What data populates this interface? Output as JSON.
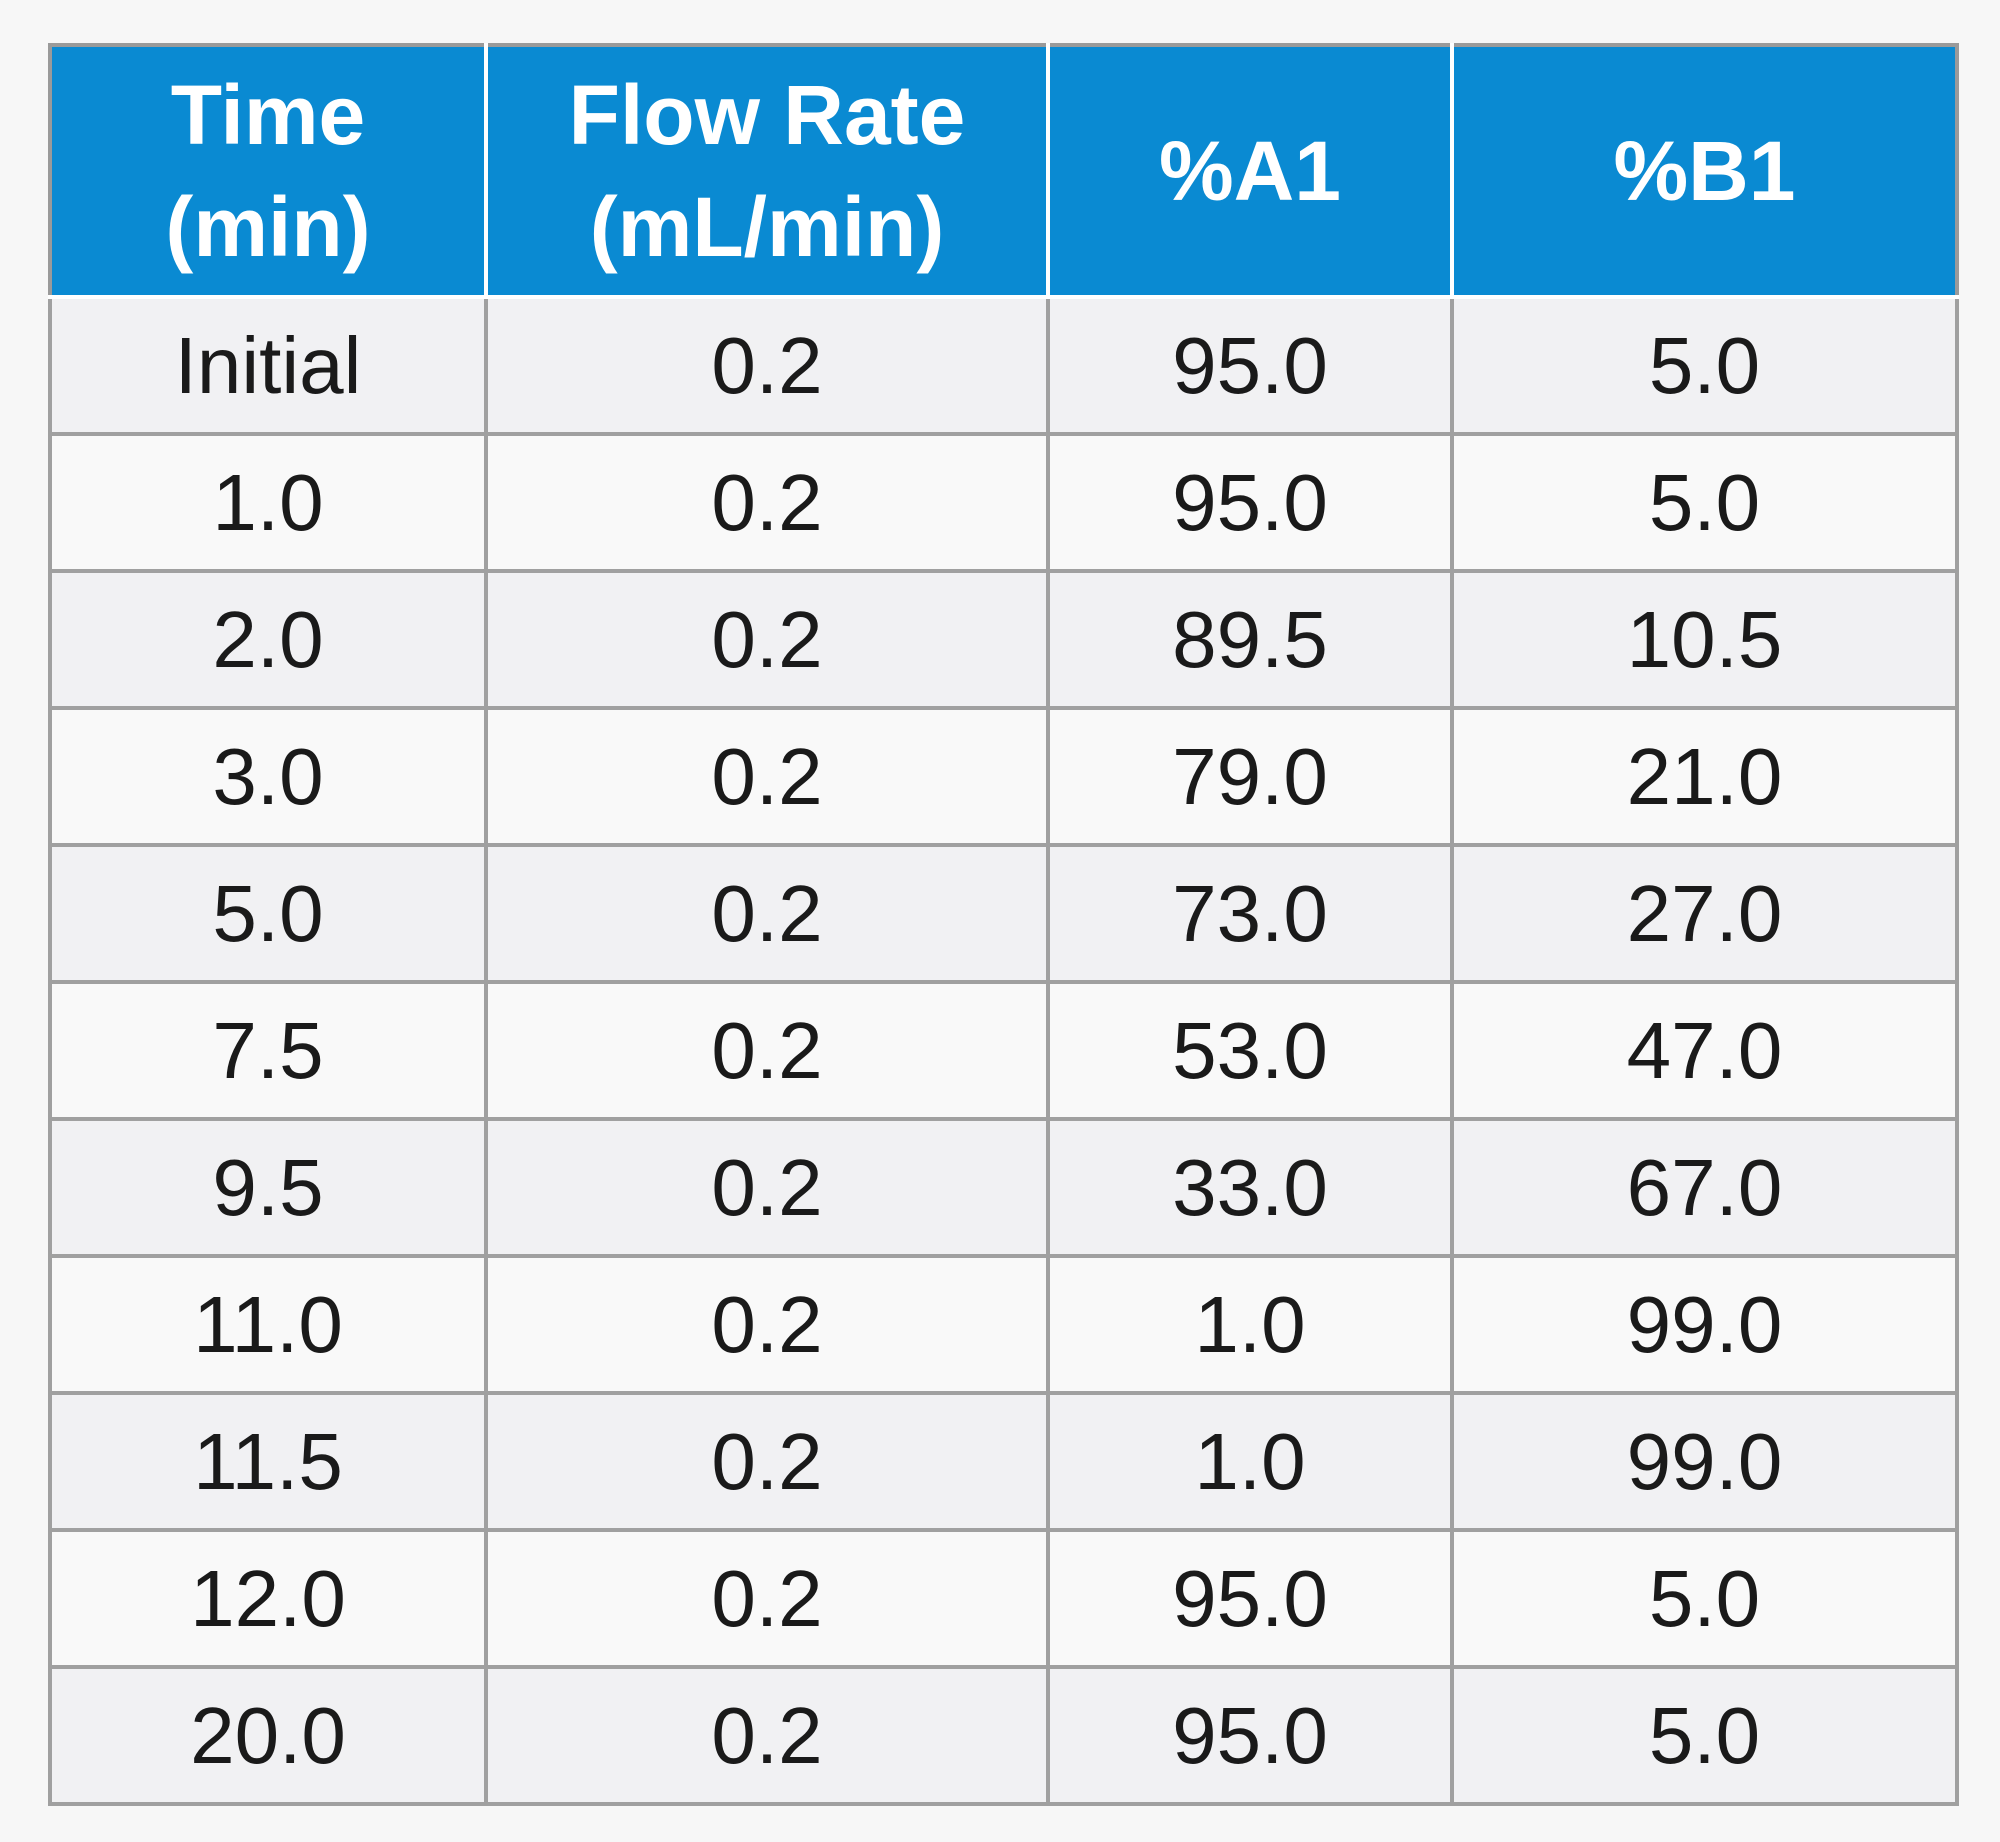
{
  "table": {
    "headers": [
      {
        "line1": "Time",
        "line2": "(min)"
      },
      {
        "line1": "Flow Rate",
        "line2": "(mL/min)"
      },
      {
        "line1": "%A1",
        "line2": ""
      },
      {
        "line1": "%B1",
        "line2": ""
      }
    ],
    "rows": [
      [
        "Initial",
        "0.2",
        "95.0",
        "5.0"
      ],
      [
        "1.0",
        "0.2",
        "95.0",
        "5.0"
      ],
      [
        "2.0",
        "0.2",
        "89.5",
        "10.5"
      ],
      [
        "3.0",
        "0.2",
        "79.0",
        "21.0"
      ],
      [
        "5.0",
        "0.2",
        "73.0",
        "27.0"
      ],
      [
        "7.5",
        "0.2",
        "53.0",
        "47.0"
      ],
      [
        "9.5",
        "0.2",
        "33.0",
        "67.0"
      ],
      [
        "11.0",
        "0.2",
        "1.0",
        "99.0"
      ],
      [
        "11.5",
        "0.2",
        "1.0",
        "99.0"
      ],
      [
        "12.0",
        "0.2",
        "95.0",
        "5.0"
      ],
      [
        "20.0",
        "0.2",
        "95.0",
        "5.0"
      ]
    ]
  },
  "colors": {
    "header_bg": "#0a8ad2",
    "header_text": "#ffffff",
    "row_odd_bg": "#f1f1f3",
    "row_even_bg": "#f9f9f9",
    "border": "#a0a0a0"
  }
}
